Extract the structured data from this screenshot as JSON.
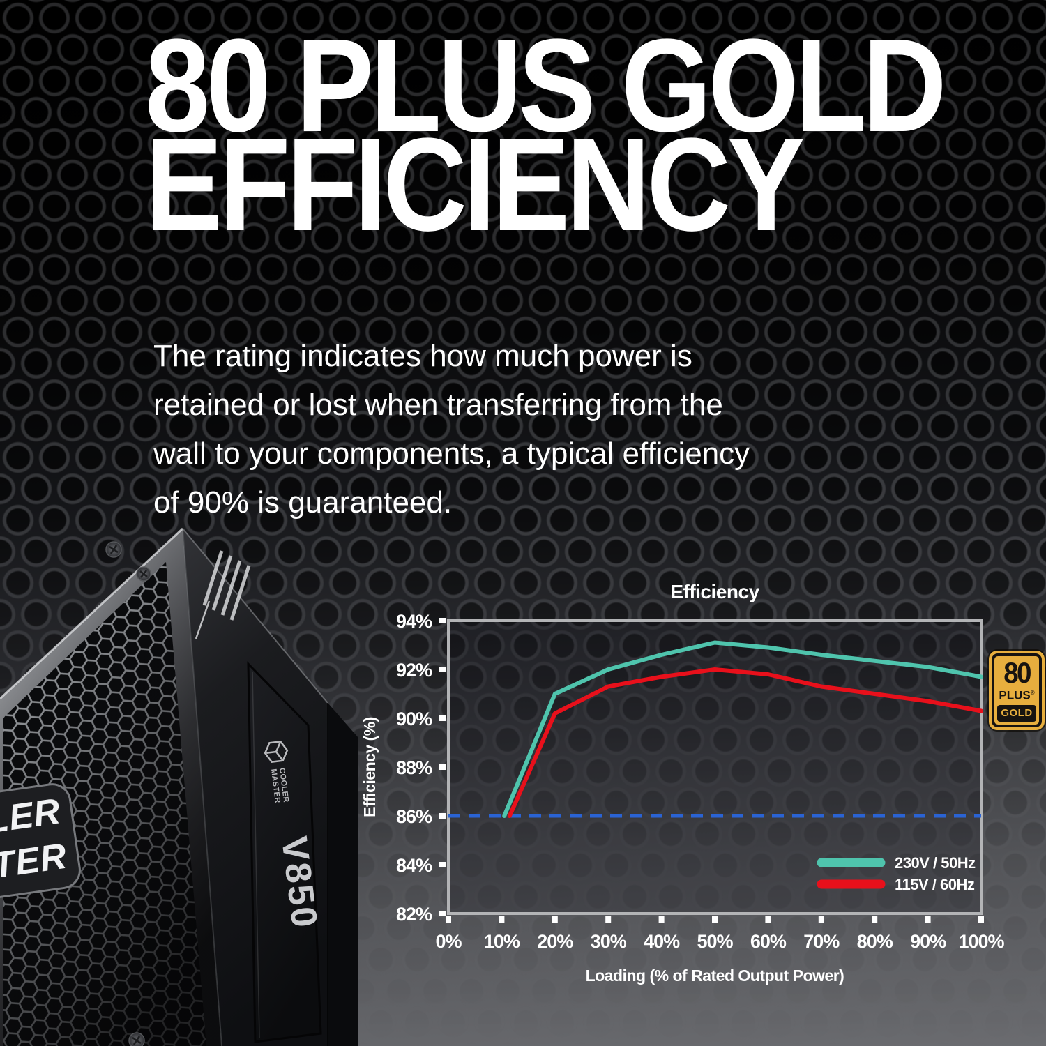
{
  "page": {
    "title_line1": "80 PLUS GOLD",
    "title_line2": "EFFICIENCY",
    "description_lines": [
      "The rating indicates how much power is",
      "retained or lost when transferring from the",
      "wall to your components, a typical efficiency",
      "of 90% is guaranteed."
    ]
  },
  "product": {
    "brand_top": "COOLER",
    "brand_bottom": "MASTER",
    "plate_brand": "COOLER MASTER",
    "model": "V850"
  },
  "badge_80plus": {
    "number": "80",
    "plus": "PLUS",
    "reg": "®",
    "tier": "GOLD"
  },
  "chart_data": {
    "type": "line",
    "title": "Efficiency",
    "xlabel": "Loading (% of Rated Output Power)",
    "ylabel": "Efficiency (%)",
    "xlim": [
      0,
      100
    ],
    "ylim": [
      82,
      94
    ],
    "x_ticks": [
      0,
      10,
      20,
      30,
      40,
      50,
      60,
      70,
      80,
      90,
      100
    ],
    "y_ticks": [
      82,
      84,
      86,
      88,
      90,
      92,
      94
    ],
    "tick_suffix": "%",
    "grid": false,
    "legend_position": "inside-bottom-right",
    "reference_line": {
      "y": 86,
      "color": "#2a63d4",
      "style": "dashed"
    },
    "series": [
      {
        "name": "230V / 50Hz",
        "color": "#4fc4ad",
        "x": [
          10.5,
          20,
          30,
          40,
          50,
          60,
          70,
          80,
          90,
          100
        ],
        "y": [
          86.0,
          91.0,
          92.0,
          92.6,
          93.1,
          92.9,
          92.6,
          92.35,
          92.1,
          91.7
        ]
      },
      {
        "name": "115V / 60Hz",
        "color": "#e8101b",
        "x": [
          11.5,
          20,
          30,
          40,
          50,
          60,
          70,
          80,
          90,
          100
        ],
        "y": [
          86.0,
          90.2,
          91.3,
          91.7,
          92.0,
          91.8,
          91.3,
          91.0,
          90.7,
          90.3
        ]
      }
    ]
  },
  "colors": {
    "accent_teal": "#4fc4ad",
    "accent_red": "#e8101b",
    "reference_blue": "#2a63d4",
    "badge_gold": "#e7ae3e",
    "axis_frame": "#b3b4b6"
  }
}
